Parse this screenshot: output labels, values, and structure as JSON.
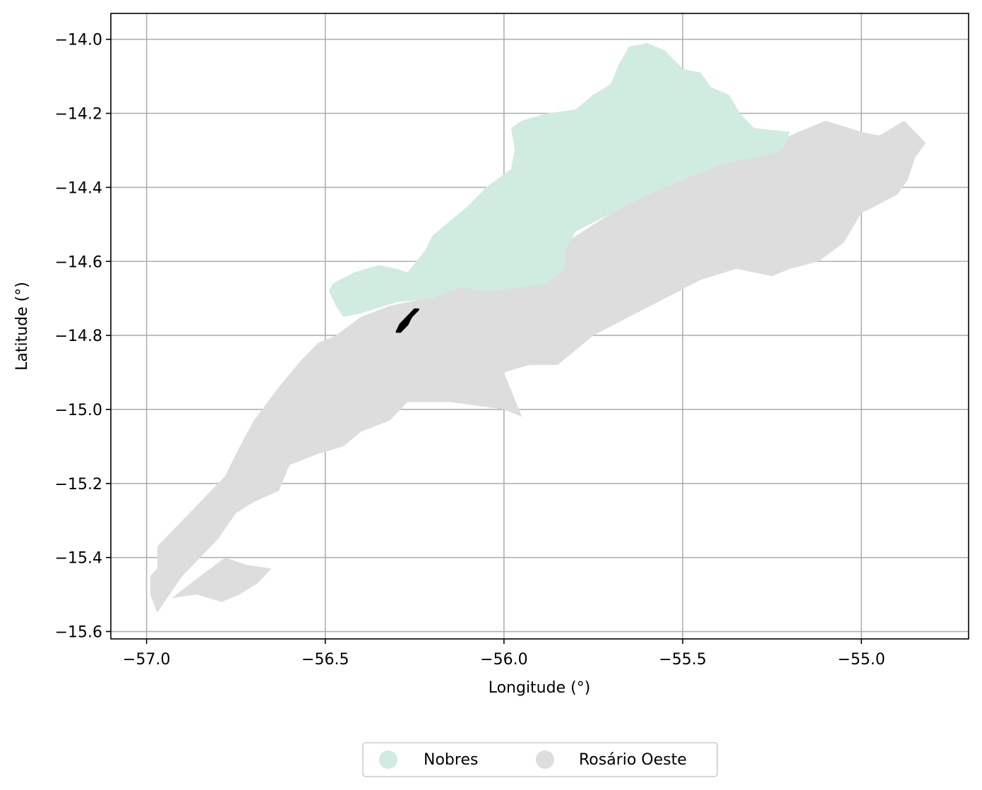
{
  "chart_data": {
    "type": "map",
    "xlabel": "Longitude (°)",
    "ylabel": "Latitude (°)",
    "xlim": [
      -57.1,
      -54.7
    ],
    "ylim": [
      -15.62,
      -13.93
    ],
    "grid": true,
    "x_ticks": [
      -57.0,
      -56.5,
      -56.0,
      -55.5,
      -55.0
    ],
    "x_tick_labels": [
      "−57.0",
      "−56.5",
      "−56.0",
      "−55.5",
      "−55.0"
    ],
    "y_ticks": [
      -14.0,
      -14.2,
      -14.4,
      -14.6,
      -14.8,
      -15.0,
      -15.2,
      -15.4,
      -15.6
    ],
    "y_tick_labels": [
      "−14.0",
      "−14.2",
      "−14.4",
      "−14.6",
      "−14.8",
      "−15.0",
      "−15.2",
      "−15.4",
      "−15.6"
    ],
    "legend_position": "bottom-center",
    "legend": [
      {
        "label": "Nobres",
        "color": "#d0ebdf"
      },
      {
        "label": "Rosário Oeste",
        "color": "#dddddd"
      }
    ],
    "regions": [
      {
        "name": "Rosário Oeste",
        "color": "#dddddd",
        "polygons": [
          [
            [
              -56.97,
              -15.43
            ],
            [
              -56.97,
              -15.37
            ],
            [
              -56.88,
              -15.28
            ],
            [
              -56.82,
              -15.22
            ],
            [
              -56.78,
              -15.18
            ],
            [
              -56.75,
              -15.12
            ],
            [
              -56.7,
              -15.03
            ],
            [
              -56.63,
              -14.94
            ],
            [
              -56.57,
              -14.87
            ],
            [
              -56.52,
              -14.82
            ],
            [
              -56.47,
              -14.8
            ],
            [
              -56.4,
              -14.75
            ],
            [
              -56.32,
              -14.72
            ],
            [
              -56.22,
              -14.7
            ],
            [
              -56.12,
              -14.67
            ],
            [
              -56.05,
              -14.63
            ],
            [
              -55.98,
              -14.61
            ],
            [
              -55.9,
              -14.6
            ],
            [
              -55.83,
              -14.55
            ],
            [
              -55.7,
              -14.47
            ],
            [
              -55.6,
              -14.42
            ],
            [
              -55.5,
              -14.38
            ],
            [
              -55.4,
              -14.34
            ],
            [
              -55.25,
              -14.29
            ],
            [
              -55.2,
              -14.26
            ],
            [
              -55.1,
              -14.22
            ],
            [
              -55.0,
              -14.25
            ],
            [
              -54.95,
              -14.26
            ],
            [
              -54.88,
              -14.22
            ],
            [
              -54.82,
              -14.28
            ],
            [
              -54.85,
              -14.32
            ],
            [
              -54.87,
              -14.38
            ],
            [
              -54.9,
              -14.42
            ],
            [
              -55.0,
              -14.47
            ],
            [
              -55.05,
              -14.55
            ],
            [
              -55.12,
              -14.6
            ],
            [
              -55.2,
              -14.62
            ],
            [
              -55.25,
              -14.64
            ],
            [
              -55.35,
              -14.62
            ],
            [
              -55.45,
              -14.65
            ],
            [
              -55.55,
              -14.7
            ],
            [
              -55.65,
              -14.75
            ],
            [
              -55.75,
              -14.8
            ],
            [
              -55.85,
              -14.88
            ],
            [
              -55.93,
              -14.88
            ],
            [
              -56.0,
              -14.9
            ],
            [
              -55.95,
              -15.02
            ],
            [
              -56.0,
              -15.0
            ],
            [
              -56.15,
              -14.98
            ],
            [
              -56.27,
              -14.98
            ],
            [
              -56.32,
              -15.03
            ],
            [
              -56.4,
              -15.06
            ],
            [
              -56.45,
              -15.1
            ],
            [
              -56.52,
              -15.12
            ],
            [
              -56.6,
              -15.15
            ],
            [
              -56.63,
              -15.22
            ],
            [
              -56.7,
              -15.25
            ],
            [
              -56.75,
              -15.28
            ],
            [
              -56.8,
              -15.35
            ],
            [
              -56.85,
              -15.4
            ],
            [
              -56.9,
              -15.45
            ],
            [
              -56.95,
              -15.52
            ],
            [
              -56.97,
              -15.55
            ],
            [
              -56.99,
              -15.5
            ],
            [
              -56.99,
              -15.45
            ]
          ],
          [
            [
              -56.93,
              -15.51
            ],
            [
              -56.85,
              -15.45
            ],
            [
              -56.78,
              -15.4
            ],
            [
              -56.72,
              -15.42
            ],
            [
              -56.65,
              -15.43
            ],
            [
              -56.69,
              -15.47
            ],
            [
              -56.74,
              -15.5
            ],
            [
              -56.79,
              -15.52
            ],
            [
              -56.86,
              -15.5
            ]
          ]
        ]
      },
      {
        "name": "Nobres",
        "color": "#d0ebdf",
        "polygons": [
          [
            [
              -56.48,
              -14.66
            ],
            [
              -56.42,
              -14.63
            ],
            [
              -56.35,
              -14.61
            ],
            [
              -56.3,
              -14.62
            ],
            [
              -56.27,
              -14.63
            ],
            [
              -56.22,
              -14.57
            ],
            [
              -56.2,
              -14.53
            ],
            [
              -56.1,
              -14.45
            ],
            [
              -56.05,
              -14.4
            ],
            [
              -55.98,
              -14.35
            ],
            [
              -55.97,
              -14.3
            ],
            [
              -55.98,
              -14.24
            ],
            [
              -55.95,
              -14.22
            ],
            [
              -55.88,
              -14.2
            ],
            [
              -55.8,
              -14.19
            ],
            [
              -55.75,
              -14.15
            ],
            [
              -55.7,
              -14.12
            ],
            [
              -55.68,
              -14.07
            ],
            [
              -55.65,
              -14.02
            ],
            [
              -55.6,
              -14.01
            ],
            [
              -55.55,
              -14.03
            ],
            [
              -55.5,
              -14.08
            ],
            [
              -55.45,
              -14.09
            ],
            [
              -55.42,
              -14.13
            ],
            [
              -55.37,
              -14.15
            ],
            [
              -55.34,
              -14.2
            ],
            [
              -55.3,
              -14.24
            ],
            [
              -55.2,
              -14.25
            ],
            [
              -55.22,
              -14.3
            ],
            [
              -55.3,
              -14.32
            ],
            [
              -55.4,
              -14.34
            ],
            [
              -55.5,
              -14.38
            ],
            [
              -55.6,
              -14.42
            ],
            [
              -55.7,
              -14.47
            ],
            [
              -55.8,
              -14.52
            ],
            [
              -55.83,
              -14.57
            ],
            [
              -55.83,
              -14.62
            ],
            [
              -55.88,
              -14.66
            ],
            [
              -55.95,
              -14.67
            ],
            [
              -56.05,
              -14.68
            ],
            [
              -56.12,
              -14.67
            ],
            [
              -56.2,
              -14.7
            ],
            [
              -56.3,
              -14.71
            ],
            [
              -56.4,
              -14.74
            ],
            [
              -56.45,
              -14.75
            ],
            [
              -56.47,
              -14.72
            ],
            [
              -56.49,
              -14.68
            ]
          ]
        ]
      },
      {
        "name": "highlight",
        "color": "#000000",
        "polygons": [
          [
            [
              -56.3,
              -14.79
            ],
            [
              -56.29,
              -14.77
            ],
            [
              -56.28,
              -14.76
            ],
            [
              -56.27,
              -14.75
            ],
            [
              -56.26,
              -14.74
            ],
            [
              -56.25,
              -14.73
            ],
            [
              -56.24,
              -14.73
            ],
            [
              -56.25,
              -14.74
            ],
            [
              -56.26,
              -14.75
            ],
            [
              -56.27,
              -14.77
            ],
            [
              -56.28,
              -14.78
            ],
            [
              -56.29,
              -14.79
            ]
          ]
        ]
      }
    ]
  }
}
